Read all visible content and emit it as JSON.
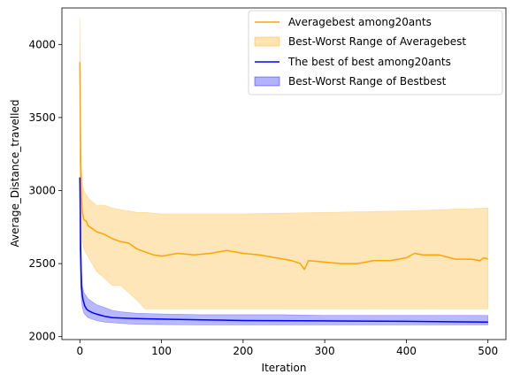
{
  "chart_data": {
    "type": "line",
    "title": "",
    "xlabel": "Iteration",
    "ylabel": "Average_Distance_travelled",
    "xlim": [
      -22,
      522
    ],
    "ylim": [
      1980,
      4250
    ],
    "xticks": [
      0,
      100,
      200,
      300,
      400,
      500
    ],
    "yticks": [
      2000,
      2500,
      3000,
      3500,
      4000
    ],
    "grid": false,
    "legend_position": "top-right",
    "series": [
      {
        "name": "Averagebest among20ants",
        "kind": "line",
        "color": "#ffa500",
        "x": [
          0,
          1,
          2,
          3,
          5,
          8,
          10,
          15,
          20,
          30,
          40,
          50,
          60,
          70,
          80,
          90,
          100,
          120,
          140,
          160,
          180,
          200,
          220,
          240,
          260,
          270,
          275,
          280,
          300,
          320,
          340,
          360,
          380,
          400,
          410,
          420,
          440,
          460,
          480,
          490,
          495,
          500
        ],
        "y": [
          3880,
          3200,
          2950,
          2850,
          2800,
          2790,
          2760,
          2740,
          2720,
          2700,
          2670,
          2650,
          2640,
          2600,
          2580,
          2560,
          2550,
          2570,
          2560,
          2570,
          2590,
          2570,
          2560,
          2540,
          2520,
          2500,
          2460,
          2520,
          2510,
          2500,
          2500,
          2520,
          2520,
          2540,
          2570,
          2560,
          2560,
          2530,
          2530,
          2520,
          2540,
          2530
        ]
      },
      {
        "name": "Best-Worst Range of Averagebest",
        "kind": "band",
        "color": "#ffa500",
        "x": [
          0,
          1,
          2,
          3,
          5,
          10,
          20,
          30,
          40,
          50,
          60,
          70,
          80,
          100,
          200,
          300,
          400,
          500
        ],
        "low": [
          3200,
          2900,
          2750,
          2650,
          2600,
          2550,
          2450,
          2400,
          2350,
          2350,
          2300,
          2250,
          2190,
          2190,
          2190,
          2190,
          2190,
          2190
        ],
        "high": [
          4180,
          3400,
          3150,
          3050,
          3000,
          2950,
          2900,
          2900,
          2880,
          2870,
          2860,
          2850,
          2850,
          2840,
          2840,
          2850,
          2860,
          2880
        ]
      },
      {
        "name": "The best of best among20ants",
        "kind": "line",
        "color": "#0000ff",
        "x": [
          0,
          1,
          2,
          3,
          4,
          5,
          6,
          8,
          10,
          15,
          20,
          30,
          40,
          50,
          60,
          80,
          100,
          150,
          200,
          300,
          400,
          500
        ],
        "y": [
          3090,
          2600,
          2350,
          2280,
          2250,
          2230,
          2210,
          2190,
          2180,
          2165,
          2155,
          2140,
          2130,
          2128,
          2125,
          2122,
          2120,
          2115,
          2110,
          2108,
          2105,
          2100
        ]
      },
      {
        "name": "Best-Worst Range of Bestbest",
        "kind": "band",
        "color": "#0000ff",
        "x": [
          0,
          1,
          2,
          3,
          5,
          10,
          20,
          30,
          40,
          50,
          70,
          100,
          150,
          200,
          250,
          300,
          350,
          400,
          450,
          500
        ],
        "low": [
          2600,
          2350,
          2250,
          2200,
          2160,
          2130,
          2110,
          2100,
          2095,
          2090,
          2085,
          2082,
          2080,
          2080,
          2080,
          2080,
          2080,
          2080,
          2080,
          2080
        ],
        "high": [
          3090,
          2700,
          2450,
          2350,
          2300,
          2260,
          2220,
          2200,
          2180,
          2170,
          2160,
          2155,
          2150,
          2150,
          2150,
          2145,
          2145,
          2145,
          2145,
          2145
        ]
      }
    ]
  }
}
